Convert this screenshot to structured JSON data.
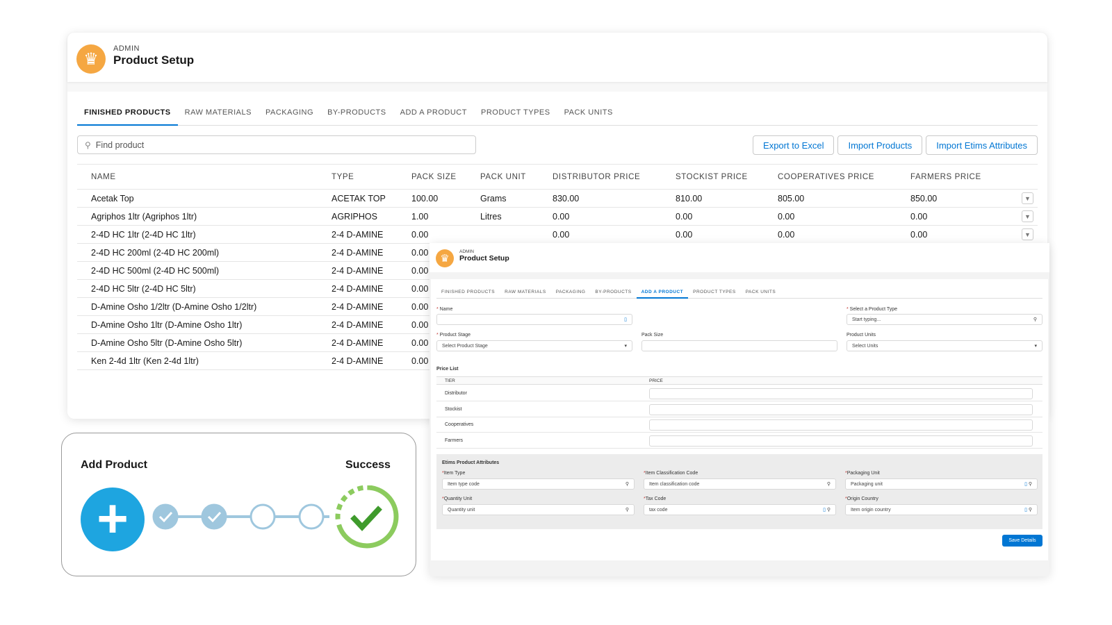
{
  "header": {
    "eyebrow": "ADMIN",
    "title": "Product Setup"
  },
  "tabs": [
    "Finished Products",
    "Raw Materials",
    "Packaging",
    "By-Products",
    "Add a Product",
    "Product Types",
    "Pack Units"
  ],
  "search": {
    "placeholder": "Find product"
  },
  "actions": {
    "export": "Export to Excel",
    "import": "Import Products",
    "import_etims": "Import Etims Attributes"
  },
  "table": {
    "columns": [
      "Name",
      "Type",
      "Pack Size",
      "Pack Unit",
      "Distributor Price",
      "Stockist Price",
      "Cooperatives Price",
      "Farmers Price"
    ],
    "rows": [
      [
        "Acetak Top",
        "ACETAK TOP",
        "100.00",
        "Grams",
        "830.00",
        "810.00",
        "805.00",
        "850.00"
      ],
      [
        "Agriphos 1ltr (Agriphos 1ltr)",
        "AGRIPHOS",
        "1.00",
        "Litres",
        "0.00",
        "0.00",
        "0.00",
        "0.00"
      ],
      [
        "2-4D HC 1ltr (2-4D HC 1ltr)",
        "2-4 D-AMINE",
        "0.00",
        "",
        "0.00",
        "0.00",
        "0.00",
        "0.00"
      ],
      [
        "2-4D HC 200ml (2-4D HC 200ml)",
        "2-4 D-AMINE",
        "0.00",
        "",
        "",
        "",
        "",
        ""
      ],
      [
        "2-4D HC 500ml (2-4D HC 500ml)",
        "2-4 D-AMINE",
        "0.00",
        "",
        "",
        "",
        "",
        ""
      ],
      [
        "2-4D HC 5ltr (2-4D HC 5ltr)",
        "2-4 D-AMINE",
        "0.00",
        "",
        "",
        "",
        "",
        ""
      ],
      [
        "D-Amine Osho 1/2ltr (D-Amine Osho 1/2ltr)",
        "2-4 D-AMINE",
        "0.00",
        "",
        "",
        "",
        "",
        ""
      ],
      [
        "D-Amine Osho 1ltr (D-Amine Osho 1ltr)",
        "2-4 D-AMINE",
        "0.00",
        "",
        "",
        "",
        "",
        ""
      ],
      [
        "D-Amine Osho 5ltr (D-Amine Osho 5ltr)",
        "2-4 D-AMINE",
        "0.00",
        "",
        "",
        "",
        "",
        ""
      ],
      [
        "Ken 2-4d 1ltr (Ken 2-4d 1ltr)",
        "2-4 D-AMINE",
        "0.00",
        "",
        "",
        "",
        "",
        ""
      ]
    ]
  },
  "flow": {
    "start": "Add Product",
    "end": "Success",
    "steps_completed": 2,
    "steps_total": 4
  },
  "form": {
    "name_label": "Name",
    "type_label": "Select a Product Type",
    "type_placeholder": "Start typing...",
    "stage_label": "Product Stage",
    "stage_value": "Select Product Stage",
    "pack_size_label": "Pack Size",
    "units_label": "Product Units",
    "units_value": "Select Units",
    "price_list": "Price List",
    "tier_col": "Tier",
    "price_col": "Price",
    "tiers": [
      "Distributor",
      "Stockist",
      "Cooperatives",
      "Farmers"
    ],
    "etims_title": "Etims Product Attributes",
    "etims": [
      {
        "label": "Item Type",
        "placeholder": "Item type code"
      },
      {
        "label": "Item Classification Code",
        "placeholder": "Item classification code"
      },
      {
        "label": "Packaging Unit",
        "placeholder": "Packaging unit"
      },
      {
        "label": "Quantity Unit",
        "placeholder": "Quantity unit"
      },
      {
        "label": "Tax Code",
        "placeholder": "tax code"
      },
      {
        "label": "Origin Country",
        "placeholder": "Item origin country"
      }
    ],
    "save": "Save Details"
  },
  "colors": {
    "accent": "#0176d3",
    "crown": "#f5a742",
    "flow_blue": "#1ea5e0",
    "success": "#5db548"
  }
}
